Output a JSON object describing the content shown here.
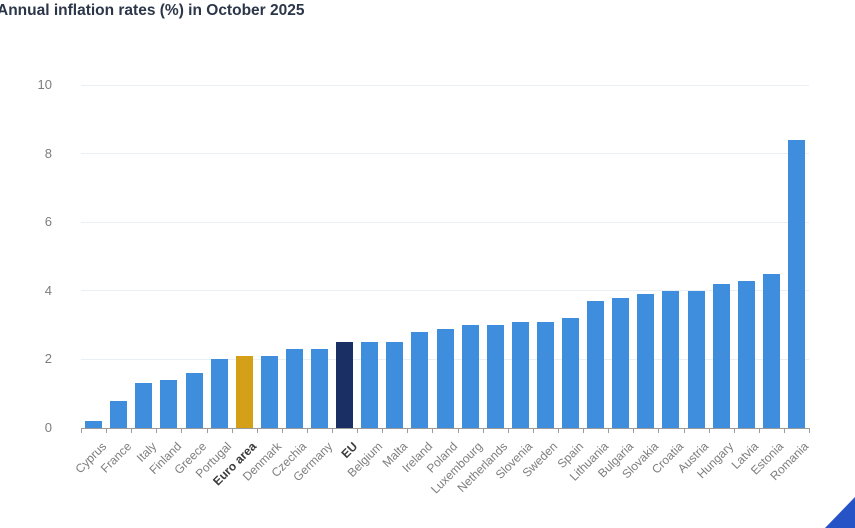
{
  "page": {
    "title": "Annual inflation rates (%) in October 2025"
  },
  "chart_data": {
    "type": "bar",
    "title": "Annual inflation rates (%) in October 2025",
    "xlabel": "",
    "ylabel": "",
    "ylim": [
      0,
      10
    ],
    "yticks": [
      0,
      2,
      4,
      6,
      8,
      10
    ],
    "grid": "horizontal-light",
    "legend": "none",
    "bar_color": "#3F8EDE",
    "categories": [
      "Cyprus",
      "France",
      "Italy",
      "Finland",
      "Greece",
      "Portugal",
      "Euro area",
      "Denmark",
      "Czechia",
      "Germany",
      "EU",
      "Belgium",
      "Malta",
      "Ireland",
      "Poland",
      "Luxembourg",
      "Netherlands",
      "Slovenia",
      "Sweden",
      "Spain",
      "Lithuania",
      "Bulgaria",
      "Slovakia",
      "Croatia",
      "Austria",
      "Hungary",
      "Latvia",
      "Estonia",
      "Romania"
    ],
    "values": [
      0.2,
      0.8,
      1.3,
      1.4,
      1.6,
      2.0,
      2.1,
      2.1,
      2.3,
      2.3,
      2.5,
      2.5,
      2.5,
      2.8,
      2.9,
      3.0,
      3.0,
      3.1,
      3.1,
      3.2,
      3.7,
      3.8,
      3.9,
      4.0,
      4.0,
      4.2,
      4.3,
      4.5,
      8.4
    ],
    "highlights": [
      {
        "index": 6,
        "category": "Euro area",
        "color": "#D4A017",
        "bold_label": true
      },
      {
        "index": 10,
        "category": "EU",
        "color": "#1A2F63",
        "bold_label": true
      }
    ]
  },
  "colors": {
    "bar_default": "#3F8EDE",
    "bar_euro_area": "#D4A017",
    "bar_eu": "#1A2F63",
    "title_text": "#2B3648",
    "axis_text": "#7D7D7D",
    "axis_text_bold": "#3B3B3B",
    "axis_line": "#9B9B9B",
    "gridline": "#E9EFF6",
    "corner_decoration": "#2653C6"
  }
}
